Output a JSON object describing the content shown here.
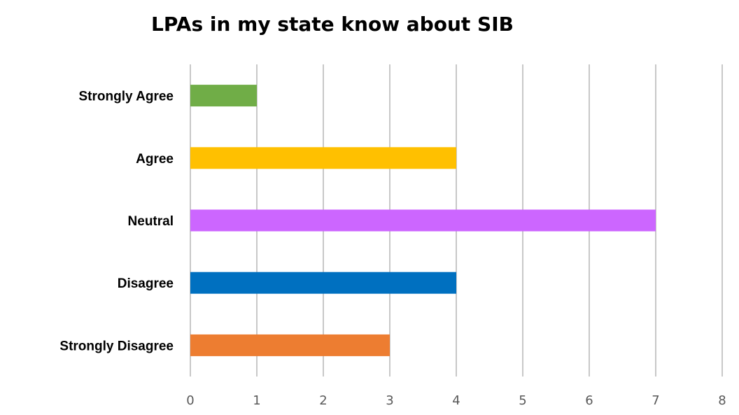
{
  "chart_data": {
    "type": "bar",
    "orientation": "horizontal",
    "title": "LPAs in my state know about SIB",
    "categories": [
      "Strongly Agree",
      "Agree",
      "Neutral",
      "Disagree",
      "Strongly Disagree"
    ],
    "values": [
      1,
      4,
      7,
      4,
      3
    ],
    "colors": [
      "#70ad47",
      "#ffc000",
      "#cc66ff",
      "#0070c0",
      "#ed7d31"
    ],
    "xlim": [
      0,
      8
    ],
    "xticks": [
      0,
      1,
      2,
      3,
      4,
      5,
      6,
      7,
      8
    ],
    "grid": true,
    "legend": "none"
  }
}
